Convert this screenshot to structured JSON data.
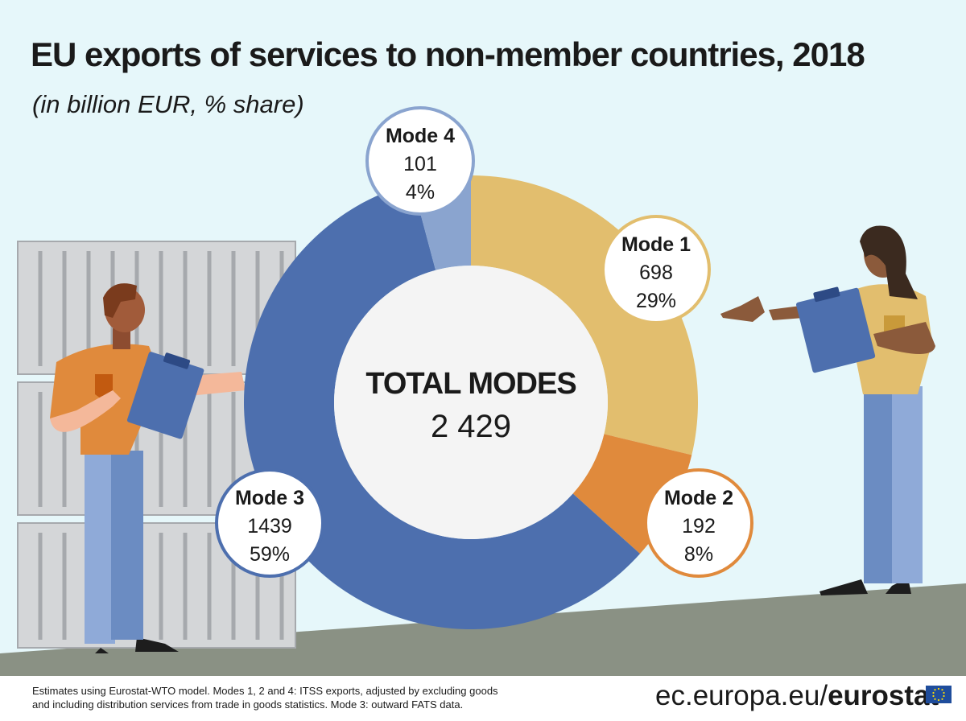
{
  "title": "EU exports of services to non-member countries, 2018",
  "subtitle": "(in billion EUR, % share)",
  "center": {
    "label": "TOTAL MODES",
    "value": "2 429"
  },
  "footnote": {
    "line1": "Estimates using Eurostat-WTO model. Modes 1, 2 and 4: ITSS exports, adjusted by excluding goods",
    "line2": "and including distribution services from trade in goods statistics. Mode 3: outward FATS data."
  },
  "brand": {
    "prefix": "ec.europa.eu/",
    "name": "eurostat"
  },
  "colors": {
    "mode1": "#e2be6e",
    "mode2": "#e08a3c",
    "mode3": "#4d6fae",
    "mode4": "#8aa4cf",
    "sky": "#e6f7fa",
    "ground": "#8a9184"
  },
  "chart_data": {
    "type": "pie",
    "title": "EU exports of services to non-member countries, 2018",
    "subtitle": "(in billion EUR, % share)",
    "total_label": "TOTAL MODES",
    "total": 2429,
    "categories": [
      "Mode 1",
      "Mode 2",
      "Mode 3",
      "Mode 4"
    ],
    "values": [
      698,
      192,
      1439,
      101
    ],
    "shares": [
      "29%",
      "8%",
      "59%",
      "4%"
    ],
    "value_labels": [
      "698",
      "192",
      "1439",
      "101"
    ]
  }
}
